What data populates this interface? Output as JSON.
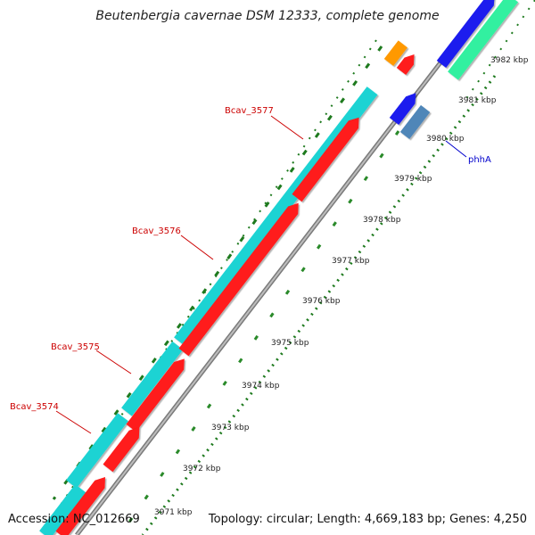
{
  "title": "Beutenbergia cavernae DSM 12333, complete genome",
  "footer": {
    "accession": "Accession: NC_012669",
    "summary": "Topology: circular; Length: 4,669,183 bp; Genes: 4,250"
  },
  "scale_labels": [
    "3971 kbp",
    "3972 kbp",
    "3973 kbp",
    "3974 kbp",
    "3975 kbp",
    "3976 kbp",
    "3977 kbp",
    "3978 kbp",
    "3979 kbp",
    "3980 kbp",
    "3981 kbp",
    "3982 kbp"
  ],
  "gene_labels": [
    "Bcav_3574",
    "Bcav_3575",
    "Bcav_3576",
    "Bcav_3577",
    "phhA"
  ],
  "colors": {
    "cds_red": "#ff1a1a",
    "cds_cyan": "#1fd3d3",
    "blue": "#1a1aee",
    "steel_blue": "#4f86b8",
    "orange": "#ff9900",
    "mint": "#33f0a0",
    "backbone": "#8c8c8c",
    "label_red": "#cc0000",
    "label_blue": "#0000cc",
    "tick_green": "#1e7a1e"
  }
}
